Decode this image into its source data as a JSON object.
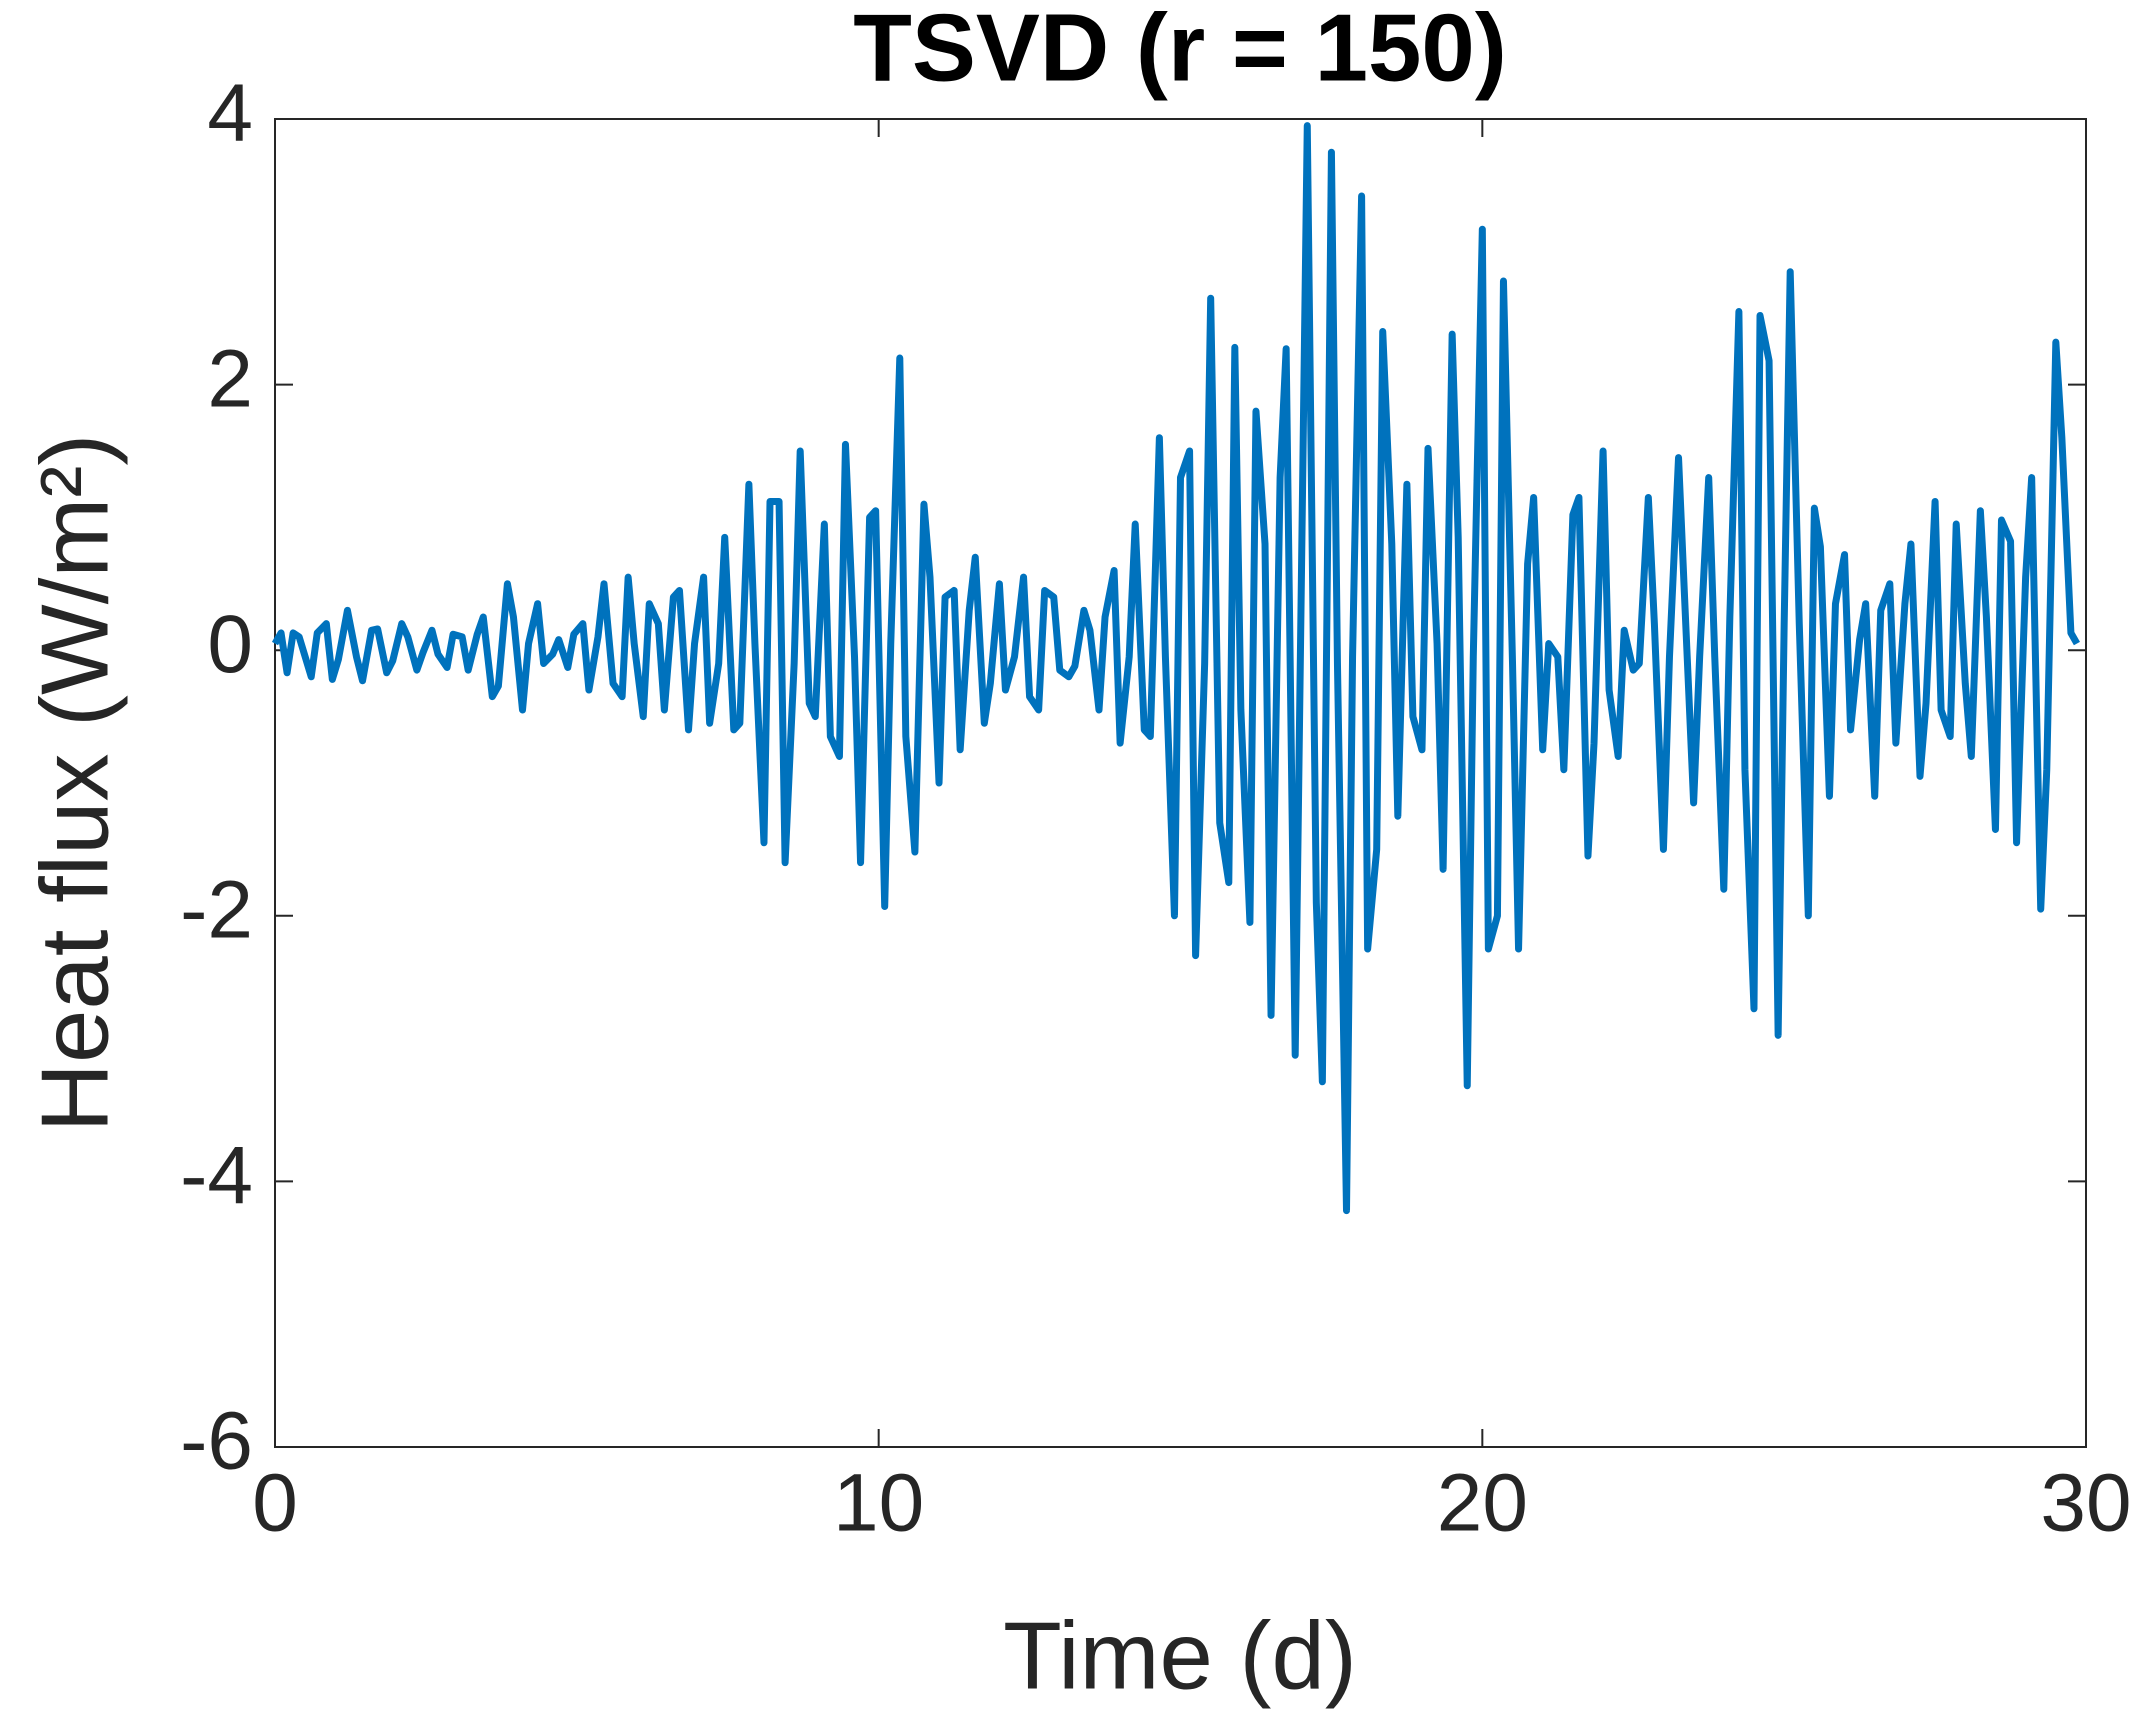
{
  "chart_data": {
    "type": "line",
    "title": "TSVD (r = 150)",
    "xlabel": "Time (d)",
    "ylabel": "Heat flux (W/m²)",
    "color": "#0072bd",
    "xlim": [
      0,
      30
    ],
    "ylim": [
      -6,
      4
    ],
    "xticks": [
      0,
      10,
      20,
      30
    ],
    "yticks": [
      -6,
      -4,
      -2,
      0,
      2,
      4
    ],
    "grid": false,
    "x": [
      0.0,
      0.1,
      0.2,
      0.3,
      0.4,
      0.6,
      0.7,
      0.85,
      0.95,
      1.05,
      1.2,
      1.35,
      1.45,
      1.6,
      1.7,
      1.85,
      1.95,
      2.1,
      2.2,
      2.35,
      2.45,
      2.6,
      2.7,
      2.85,
      2.95,
      3.1,
      3.2,
      3.35,
      3.45,
      3.6,
      3.7,
      3.85,
      3.95,
      4.1,
      4.2,
      4.35,
      4.45,
      4.6,
      4.7,
      4.85,
      4.95,
      5.1,
      5.2,
      5.35,
      5.45,
      5.6,
      5.75,
      5.85,
      5.95,
      6.1,
      6.2,
      6.35,
      6.45,
      6.6,
      6.7,
      6.85,
      6.95,
      7.1,
      7.2,
      7.35,
      7.45,
      7.6,
      7.7,
      7.85,
      7.95,
      8.1,
      8.2,
      8.35,
      8.45,
      8.6,
      8.7,
      8.85,
      8.95,
      9.1,
      9.2,
      9.35,
      9.45,
      9.6,
      9.7,
      9.85,
      9.95,
      10.1,
      10.2,
      10.35,
      10.45,
      10.6,
      10.75,
      10.85,
      11.0,
      11.1,
      11.25,
      11.35,
      11.5,
      11.6,
      11.75,
      11.85,
      12.0,
      12.1,
      12.25,
      12.4,
      12.5,
      12.65,
      12.75,
      12.9,
      13.0,
      13.15,
      13.25,
      13.4,
      13.5,
      13.65,
      13.75,
      13.9,
      14.0,
      14.15,
      14.25,
      14.4,
      14.5,
      14.65,
      14.75,
      14.9,
      15.0,
      15.15,
      15.25,
      15.4,
      15.5,
      15.65,
      15.8,
      15.9,
      16.0,
      16.15,
      16.25,
      16.4,
      16.5,
      16.65,
      16.75,
      16.9,
      17.1,
      17.25,
      17.35,
      17.5,
      17.6,
      17.75,
      17.85,
      18.0,
      18.1,
      18.25,
      18.35,
      18.5,
      18.6,
      18.75,
      18.85,
      19.0,
      19.1,
      19.25,
      19.35,
      19.5,
      19.6,
      19.75,
      19.85,
      20.0,
      20.1,
      20.25,
      20.35,
      20.5,
      20.6,
      20.75,
      20.85,
      21.0,
      21.1,
      21.25,
      21.35,
      21.5,
      21.6,
      21.75,
      21.85,
      22.0,
      22.1,
      22.25,
      22.35,
      22.5,
      22.6,
      22.75,
      22.85,
      23.0,
      23.1,
      23.25,
      23.35,
      23.5,
      23.6,
      23.75,
      23.85,
      24.0,
      24.1,
      24.25,
      24.35,
      24.5,
      24.6,
      24.75,
      24.9,
      25.0,
      25.1,
      25.25,
      25.4,
      25.5,
      25.6,
      25.75,
      25.85,
      26.0,
      26.1,
      26.25,
      26.35,
      26.5,
      26.6,
      26.75,
      26.85,
      27.0,
      27.1,
      27.25,
      27.35,
      27.5,
      27.6,
      27.75,
      27.85,
      28.0,
      28.1,
      28.25,
      28.35,
      28.5,
      28.6,
      28.75,
      28.85,
      29.0,
      29.1,
      29.25,
      29.35,
      29.5,
      29.6,
      29.75,
      29.85
    ],
    "values": [
      0.05,
      0.13,
      -0.17,
      0.13,
      0.1,
      -0.2,
      0.13,
      0.2,
      -0.22,
      -0.07,
      0.3,
      -0.05,
      -0.23,
      0.15,
      0.16,
      -0.17,
      -0.08,
      0.2,
      0.1,
      -0.15,
      -0.02,
      0.15,
      -0.03,
      -0.13,
      0.12,
      0.1,
      -0.15,
      0.12,
      0.25,
      -0.35,
      -0.27,
      0.5,
      0.25,
      -0.45,
      0.05,
      0.35,
      -0.1,
      -0.03,
      0.08,
      -0.13,
      0.12,
      0.2,
      -0.3,
      0.1,
      0.5,
      -0.25,
      -0.35,
      0.55,
      0.05,
      -0.5,
      0.35,
      0.2,
      -0.45,
      0.4,
      0.45,
      -0.6,
      0.05,
      0.55,
      -0.55,
      -0.1,
      0.85,
      -0.6,
      -0.55,
      1.25,
      0.05,
      -1.45,
      1.12,
      1.12,
      -1.6,
      -0.1,
      1.5,
      -0.4,
      -0.5,
      0.95,
      -0.65,
      -0.8,
      1.55,
      -0.05,
      -1.6,
      1.0,
      1.05,
      -1.93,
      0.05,
      2.2,
      -0.65,
      -1.52,
      1.1,
      0.55,
      -1.0,
      0.4,
      0.45,
      -0.75,
      0.3,
      0.7,
      -0.55,
      -0.25,
      0.5,
      -0.3,
      -0.05,
      0.55,
      -0.35,
      -0.45,
      0.45,
      0.4,
      -0.15,
      -0.2,
      -0.12,
      0.3,
      0.15,
      -0.45,
      0.25,
      0.6,
      -0.7,
      -0.05,
      0.95,
      -0.6,
      -0.65,
      1.6,
      -0.05,
      -2.0,
      1.3,
      1.5,
      -2.3,
      -0.1,
      2.65,
      -1.3,
      -1.75,
      2.28,
      -0.45,
      -2.05,
      1.8,
      0.8,
      -2.75,
      1.3,
      2.27,
      -3.05,
      3.95,
      -1.9,
      -3.25,
      3.75,
      -0.1,
      -4.22,
      -0.05,
      3.42,
      -2.25,
      -1.5,
      2.4,
      0.8,
      -1.25,
      1.25,
      -0.5,
      -0.75,
      1.52,
      0.05,
      -1.65,
      2.38,
      0.85,
      -3.28,
      -0.05,
      3.17,
      -2.25,
      -2.0,
      2.78,
      -0.1,
      -2.25,
      0.65,
      1.15,
      -0.75,
      0.05,
      -0.05,
      -0.9,
      1.02,
      1.15,
      -1.55,
      -0.7,
      1.5,
      -0.3,
      -0.8,
      0.15,
      -0.15,
      -0.1,
      1.15,
      0.2,
      -1.5,
      -0.05,
      1.45,
      0.4,
      -1.15,
      -0.05,
      1.3,
      -0.05,
      -1.8,
      0.25,
      2.55,
      -0.9,
      -2.7,
      2.52,
      2.18,
      -2.9,
      0.2,
      2.85,
      0.2,
      -2.0,
      1.07,
      0.78,
      -1.1,
      0.35,
      0.72,
      -0.6,
      0.08,
      0.35,
      -1.1,
      0.3,
      0.5,
      -0.7,
      0.35,
      0.8,
      -0.95,
      -0.4,
      1.12,
      -0.45,
      -0.65,
      0.95,
      -0.25,
      -0.8,
      1.05,
      0.25,
      -1.35,
      0.98,
      0.82,
      -1.45,
      0.55,
      1.3,
      -1.95,
      -0.9,
      2.32,
      1.6,
      0.13,
      0.05
    ]
  }
}
